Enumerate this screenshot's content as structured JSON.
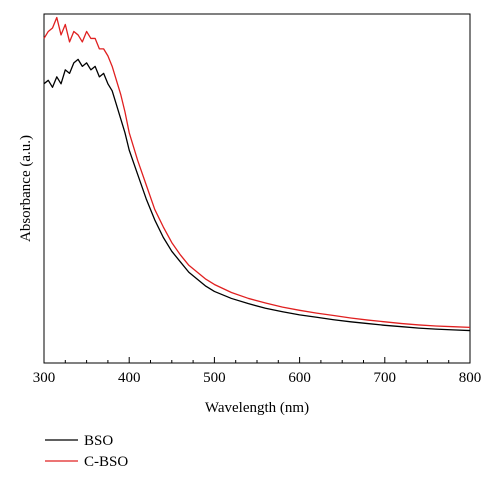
{
  "chart_data": {
    "type": "line",
    "xlabel": "Wavelength (nm)",
    "ylabel": "Absorbance (a.u.)",
    "xlim": [
      300,
      800
    ],
    "xticks": [
      "300",
      "400",
      "500",
      "600",
      "700",
      "800"
    ],
    "yticks_labeled": false,
    "legend_position": "bottom-left, below plot",
    "series": [
      {
        "name": "BSO",
        "color": "#000000",
        "x": [
          300,
          305,
          310,
          315,
          320,
          325,
          330,
          335,
          340,
          345,
          350,
          355,
          360,
          365,
          370,
          375,
          380,
          385,
          390,
          395,
          400,
          410,
          420,
          430,
          440,
          450,
          460,
          470,
          480,
          490,
          500,
          520,
          540,
          560,
          580,
          600,
          620,
          640,
          660,
          680,
          700,
          720,
          740,
          760,
          780,
          800
        ],
        "y": [
          0.8,
          0.81,
          0.79,
          0.82,
          0.8,
          0.84,
          0.83,
          0.86,
          0.87,
          0.85,
          0.86,
          0.84,
          0.85,
          0.82,
          0.83,
          0.8,
          0.78,
          0.74,
          0.7,
          0.66,
          0.61,
          0.54,
          0.47,
          0.41,
          0.36,
          0.32,
          0.29,
          0.26,
          0.24,
          0.22,
          0.205,
          0.185,
          0.17,
          0.157,
          0.147,
          0.138,
          0.131,
          0.124,
          0.118,
          0.113,
          0.108,
          0.104,
          0.1,
          0.097,
          0.095,
          0.093
        ]
      },
      {
        "name": "C-BSO",
        "color": "#e02020",
        "x": [
          300,
          305,
          310,
          315,
          320,
          325,
          330,
          335,
          340,
          345,
          350,
          355,
          360,
          365,
          370,
          375,
          380,
          385,
          390,
          395,
          400,
          410,
          420,
          430,
          440,
          450,
          460,
          470,
          480,
          490,
          500,
          520,
          540,
          560,
          580,
          600,
          620,
          640,
          660,
          680,
          700,
          720,
          740,
          760,
          780,
          800
        ],
        "y": [
          0.93,
          0.95,
          0.96,
          0.99,
          0.94,
          0.97,
          0.92,
          0.95,
          0.94,
          0.92,
          0.95,
          0.93,
          0.93,
          0.9,
          0.9,
          0.88,
          0.85,
          0.81,
          0.77,
          0.72,
          0.66,
          0.58,
          0.51,
          0.44,
          0.39,
          0.345,
          0.31,
          0.28,
          0.26,
          0.24,
          0.225,
          0.202,
          0.185,
          0.172,
          0.16,
          0.151,
          0.143,
          0.136,
          0.129,
          0.123,
          0.118,
          0.113,
          0.109,
          0.106,
          0.104,
          0.102
        ]
      }
    ]
  }
}
